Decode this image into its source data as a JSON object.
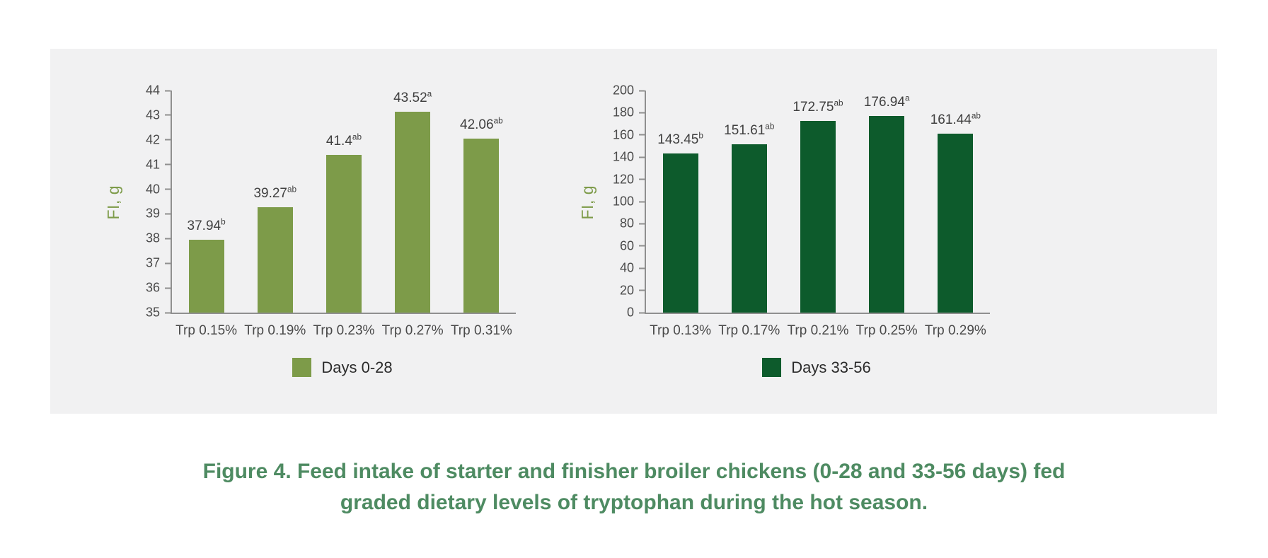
{
  "figure": {
    "panel_background": "#f1f1f2",
    "caption_line1": "Figure 4. Feed intake of starter and finisher broiler chickens (0-28 and 33-56 days) fed",
    "caption_line2": "graded dietary levels of tryptophan during the hot season.",
    "caption_color": "#4e8b62"
  },
  "chart_data": [
    {
      "type": "bar",
      "title": "",
      "xlabel": "",
      "ylabel": "FI, g",
      "ylabel_color": "#7d9b49",
      "categories": [
        "Trp 0.15%",
        "Trp 0.19%",
        "Trp 0.23%",
        "Trp 0.27%",
        "Trp 0.31%"
      ],
      "values": [
        37.94,
        39.27,
        41.4,
        43.52,
        42.06
      ],
      "value_labels": [
        "37.94",
        "39.27",
        "41.4",
        "43.52",
        "42.06"
      ],
      "value_superscripts": [
        "b",
        "ab",
        "ab",
        "a",
        "ab"
      ],
      "ylim": [
        35,
        44
      ],
      "ytick_step": 1,
      "bar_color": "#7d9b49",
      "grid": false,
      "legend": {
        "label": "Days 0-28",
        "position": "bottom"
      }
    },
    {
      "type": "bar",
      "title": "",
      "xlabel": "",
      "ylabel": "FI, g",
      "ylabel_color": "#7d9b49",
      "categories": [
        "Trp 0.13%",
        "Trp 0.17%",
        "Trp 0.21%",
        "Trp 0.25%",
        "Trp 0.29%"
      ],
      "values": [
        143.45,
        151.61,
        172.75,
        176.94,
        161.44
      ],
      "value_labels": [
        "143.45",
        "151.61",
        "172.75",
        "176.94",
        "161.44"
      ],
      "value_superscripts": [
        "b",
        "ab",
        "ab",
        "a",
        "ab"
      ],
      "ylim": [
        0,
        200
      ],
      "ytick_step": 20,
      "bar_color": "#0d5b2c",
      "grid": false,
      "legend": {
        "label": "Days 33-56",
        "position": "bottom"
      }
    }
  ]
}
